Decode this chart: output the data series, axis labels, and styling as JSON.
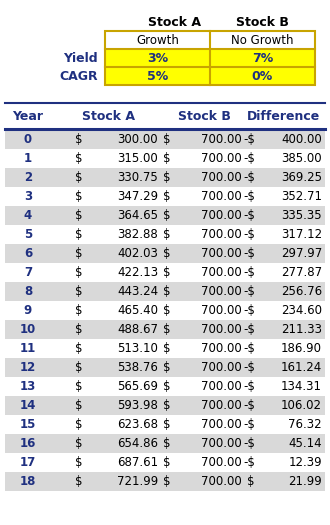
{
  "stock_a_label": "Stock A",
  "stock_b_label": "Stock B",
  "growth_label": "Growth",
  "no_growth_label": "No Growth",
  "yield_label": "Yield",
  "cagr_label": "CAGR",
  "yield_a": "3%",
  "yield_b": "7%",
  "cagr_a": "5%",
  "cagr_b": "0%",
  "col_headers": [
    "Year",
    "Stock A",
    "Stock B",
    "Difference"
  ],
  "years": [
    0,
    1,
    2,
    3,
    4,
    5,
    6,
    7,
    8,
    9,
    10,
    11,
    12,
    13,
    14,
    15,
    16,
    17,
    18
  ],
  "stock_a": [
    300.0,
    315.0,
    330.75,
    347.29,
    364.65,
    382.88,
    402.03,
    422.13,
    443.24,
    465.4,
    488.67,
    513.1,
    538.76,
    565.69,
    593.98,
    623.68,
    654.86,
    687.61,
    721.99
  ],
  "stock_b": [
    700.0,
    700.0,
    700.0,
    700.0,
    700.0,
    700.0,
    700.0,
    700.0,
    700.0,
    700.0,
    700.0,
    700.0,
    700.0,
    700.0,
    700.0,
    700.0,
    700.0,
    700.0,
    700.0
  ],
  "diff": [
    -400.0,
    -385.0,
    -369.25,
    -352.71,
    -335.35,
    -317.12,
    -297.97,
    -277.87,
    -256.76,
    -234.6,
    -211.33,
    -186.9,
    -161.24,
    -134.31,
    -106.02,
    -76.32,
    -45.14,
    -12.39,
    21.99
  ],
  "yellow": "#FFFF00",
  "white": "#FFFFFF",
  "alt_row_bg": "#D9D9D9",
  "text_blue": "#1F3080",
  "border_gold": "#C8A400",
  "divider_blue": "#1F3080",
  "black": "#000000"
}
